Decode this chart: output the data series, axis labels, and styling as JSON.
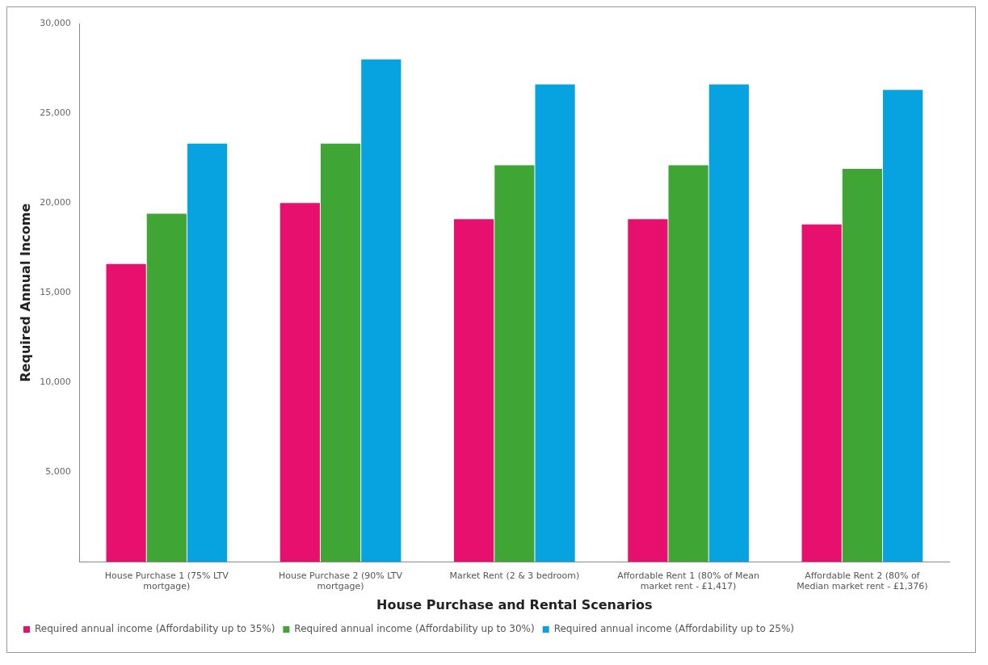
{
  "chart_data": {
    "type": "bar",
    "xlabel": "House Purchase and Rental Scenarios",
    "ylabel": "Required Annual Income",
    "categories": [
      "House Purchase 1 (75% LTV mortgage)",
      "House Purchase 2 (90% LTV mortgage)",
      "Market Rent (2 & 3 bedroom)",
      "Affordable Rent 1 (80% of Mean market rent - £1,417)",
      "Affordable Rent 2 (80% of Median market rent - £1,376)"
    ],
    "series": [
      {
        "name": "Required annual income (Affordability up to 35%)",
        "color": "#e8106e",
        "values": [
          16600,
          20000,
          19100,
          19100,
          18800
        ]
      },
      {
        "name": "Required annual income (Affordability up to 30%)",
        "color": "#3fa535",
        "values": [
          19400,
          23300,
          22100,
          22100,
          21900
        ]
      },
      {
        "name": "Required annual income (Affordability up to 25%)",
        "color": "#06a3e0",
        "values": [
          23300,
          28000,
          26600,
          26600,
          26300
        ]
      }
    ],
    "ylim": [
      0,
      30000
    ],
    "yticks": [
      {
        "value": 5000,
        "label": "5,000"
      },
      {
        "value": 10000,
        "label": "10,000"
      },
      {
        "value": 15000,
        "label": "15,000"
      },
      {
        "value": 20000,
        "label": "20,000"
      },
      {
        "value": 25000,
        "label": "25,000"
      },
      {
        "value": 30000,
        "label": "30,000"
      }
    ],
    "grid": false,
    "legend": "bottom"
  }
}
